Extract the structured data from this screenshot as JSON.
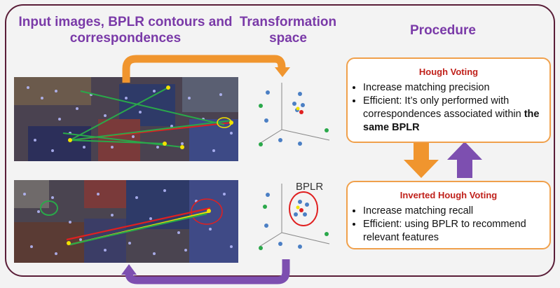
{
  "headings": {
    "input": "Input images, BPLR contours and correspondences",
    "transformation": "Transformation space",
    "procedure": "Procedure"
  },
  "hough": {
    "title": "Hough Voting",
    "bullet1": "Increase matching precision",
    "bullet2_text": "Efficient:  It’s only performed with correspondences associated within ",
    "bullet2_bold": "the same BPLR"
  },
  "inverted": {
    "title": "Inverted Hough Voting",
    "bullet1": "Increase matching recall",
    "bullet2": "Efficient: using BPLR to recommend relevant features"
  },
  "bplr_label": "BPLR",
  "colors": {
    "heading": "#7a3aa8",
    "box_border": "#f0a04b",
    "title_red": "#c0211b",
    "arrow_orange": "#f0952e",
    "arrow_purple": "#7d4fb0",
    "frame": "#5a1e38"
  }
}
